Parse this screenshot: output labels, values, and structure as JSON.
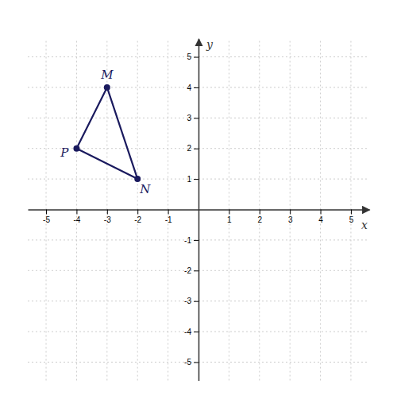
{
  "chart_data": {
    "type": "polygon",
    "x_label": "x",
    "y_label": "y",
    "categories": [
      "M",
      "N",
      "P"
    ],
    "x": [
      -3,
      -2,
      -4
    ],
    "values": [
      4,
      1,
      2
    ],
    "color": "#1a1a5e",
    "marker": "circle",
    "line_style": "solid",
    "xlim": [
      -5.6,
      5.6
    ],
    "ylim": [
      -5.6,
      5.6
    ],
    "xticks": [
      -5,
      -4,
      -3,
      -2,
      -1,
      1,
      2,
      3,
      4,
      5
    ],
    "yticks": [
      -5,
      -4,
      -3,
      -2,
      -1,
      1,
      2,
      3,
      4,
      5
    ],
    "grid": true
  }
}
